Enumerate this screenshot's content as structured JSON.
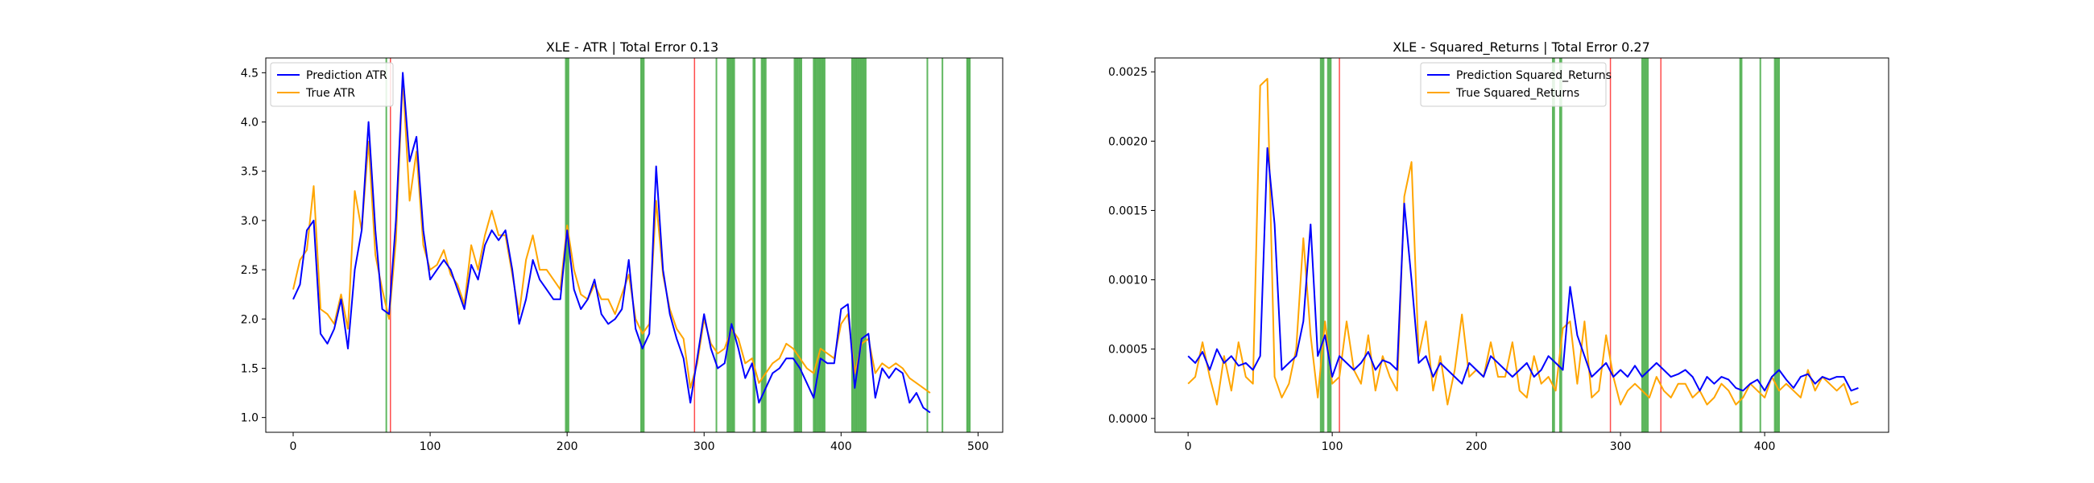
{
  "chart_data": [
    {
      "type": "line",
      "title": "XLE - ATR | Total Error 0.13",
      "xlabel": "",
      "ylabel": "",
      "xlim": [
        -20,
        518
      ],
      "ylim": [
        0.85,
        4.65
      ],
      "xticks": [
        0,
        100,
        200,
        300,
        400,
        500
      ],
      "yticks": [
        1.0,
        1.5,
        2.0,
        2.5,
        3.0,
        3.5,
        4.0,
        4.5
      ],
      "ytick_format": 1,
      "legend_position": "upper-left",
      "grid": false,
      "series": [
        {
          "name": "Prediction ATR",
          "color": "#0000ff",
          "x": [
            0,
            5,
            10,
            15,
            20,
            25,
            30,
            35,
            40,
            45,
            50,
            55,
            60,
            65,
            70,
            75,
            80,
            85,
            90,
            95,
            100,
            105,
            110,
            115,
            120,
            125,
            130,
            135,
            140,
            145,
            150,
            155,
            160,
            165,
            170,
            175,
            180,
            185,
            190,
            195,
            200,
            205,
            210,
            215,
            220,
            225,
            230,
            235,
            240,
            245,
            250,
            255,
            260,
            265,
            270,
            275,
            280,
            285,
            290,
            295,
            300,
            305,
            310,
            315,
            320,
            325,
            330,
            335,
            340,
            345,
            350,
            355,
            360,
            365,
            370,
            375,
            380,
            385,
            390,
            395,
            400,
            405,
            410,
            415,
            420,
            425,
            430,
            435,
            440,
            445,
            450,
            455,
            460,
            465
          ],
          "values": [
            2.2,
            2.35,
            2.9,
            3.0,
            1.85,
            1.75,
            1.9,
            2.2,
            1.7,
            2.5,
            2.9,
            4.0,
            2.9,
            2.1,
            2.05,
            3.0,
            4.5,
            3.6,
            3.85,
            2.9,
            2.4,
            2.5,
            2.6,
            2.5,
            2.3,
            2.1,
            2.55,
            2.4,
            2.75,
            2.9,
            2.8,
            2.9,
            2.5,
            1.95,
            2.2,
            2.6,
            2.4,
            2.3,
            2.2,
            2.2,
            2.9,
            2.3,
            2.1,
            2.2,
            2.4,
            2.05,
            1.95,
            2.0,
            2.1,
            2.6,
            1.9,
            1.7,
            1.85,
            3.55,
            2.5,
            2.05,
            1.8,
            1.6,
            1.15,
            1.6,
            2.05,
            1.7,
            1.5,
            1.55,
            1.95,
            1.7,
            1.4,
            1.55,
            1.15,
            1.3,
            1.45,
            1.5,
            1.6,
            1.6,
            1.5,
            1.35,
            1.2,
            1.6,
            1.55,
            1.55,
            2.1,
            2.15,
            1.3,
            1.8,
            1.85,
            1.2,
            1.5,
            1.4,
            1.5,
            1.45,
            1.15,
            1.25,
            1.1,
            1.05
          ]
        },
        {
          "name": "True ATR",
          "color": "#ffa500",
          "x": [
            0,
            5,
            10,
            15,
            20,
            25,
            30,
            35,
            40,
            45,
            50,
            55,
            60,
            65,
            70,
            75,
            80,
            85,
            90,
            95,
            100,
            105,
            110,
            115,
            120,
            125,
            130,
            135,
            140,
            145,
            150,
            155,
            160,
            165,
            170,
            175,
            180,
            185,
            190,
            195,
            200,
            205,
            210,
            215,
            220,
            225,
            230,
            235,
            240,
            245,
            250,
            255,
            260,
            265,
            270,
            275,
            280,
            285,
            290,
            295,
            300,
            305,
            310,
            315,
            320,
            325,
            330,
            335,
            340,
            345,
            350,
            355,
            360,
            365,
            370,
            375,
            380,
            385,
            390,
            395,
            400,
            405,
            410,
            415,
            420,
            425,
            430,
            435,
            440,
            445,
            450,
            455,
            460,
            465
          ],
          "values": [
            2.3,
            2.6,
            2.7,
            3.35,
            2.1,
            2.05,
            1.95,
            2.25,
            1.9,
            3.3,
            2.9,
            3.8,
            2.65,
            2.3,
            2.0,
            2.8,
            4.45,
            3.2,
            3.7,
            2.75,
            2.5,
            2.55,
            2.7,
            2.45,
            2.35,
            2.15,
            2.75,
            2.5,
            2.85,
            3.1,
            2.85,
            2.85,
            2.45,
            2.05,
            2.6,
            2.85,
            2.5,
            2.5,
            2.4,
            2.3,
            2.95,
            2.5,
            2.25,
            2.2,
            2.35,
            2.2,
            2.2,
            2.05,
            2.25,
            2.45,
            2.0,
            1.85,
            1.95,
            3.2,
            2.45,
            2.1,
            1.9,
            1.8,
            1.3,
            1.55,
            2.0,
            1.75,
            1.65,
            1.7,
            1.9,
            1.8,
            1.55,
            1.6,
            1.35,
            1.45,
            1.55,
            1.6,
            1.75,
            1.7,
            1.6,
            1.5,
            1.45,
            1.7,
            1.65,
            1.6,
            1.95,
            2.05,
            1.45,
            1.75,
            1.8,
            1.45,
            1.55,
            1.5,
            1.55,
            1.5,
            1.4,
            1.35,
            1.3,
            1.25
          ]
        }
      ],
      "vlines_green": [
        68,
        199,
        200,
        201,
        254,
        255,
        256,
        309,
        317,
        318,
        319,
        320,
        321,
        322,
        336,
        337,
        342,
        343,
        344,
        345,
        366,
        367,
        368,
        369,
        370,
        371,
        380,
        381,
        382,
        383,
        384,
        385,
        386,
        387,
        388,
        408,
        409,
        410,
        411,
        412,
        413,
        414,
        415,
        416,
        417,
        418,
        463,
        474,
        492,
        493,
        494
      ],
      "vlines_red": [
        71,
        293
      ]
    },
    {
      "type": "line",
      "title": "XLE - Squared_Returns | Total Error 0.27",
      "xlabel": "",
      "ylabel": "",
      "xlim": [
        -23,
        486
      ],
      "ylim": [
        -0.0001,
        0.0026
      ],
      "xticks": [
        0,
        100,
        200,
        300,
        400
      ],
      "yticks": [
        0.0,
        0.0005,
        0.001,
        0.0015,
        0.002,
        0.0025
      ],
      "ytick_format": 4,
      "legend_position": "upper-center",
      "grid": false,
      "series": [
        {
          "name": "Prediction Squared_Returns",
          "color": "#0000ff",
          "x": [
            0,
            5,
            10,
            15,
            20,
            25,
            30,
            35,
            40,
            45,
            50,
            55,
            60,
            65,
            70,
            75,
            80,
            85,
            90,
            95,
            100,
            105,
            110,
            115,
            120,
            125,
            130,
            135,
            140,
            145,
            150,
            155,
            160,
            165,
            170,
            175,
            180,
            185,
            190,
            195,
            200,
            205,
            210,
            215,
            220,
            225,
            230,
            235,
            240,
            245,
            250,
            255,
            260,
            265,
            270,
            275,
            280,
            285,
            290,
            295,
            300,
            305,
            310,
            315,
            320,
            325,
            330,
            335,
            340,
            345,
            350,
            355,
            360,
            365,
            370,
            375,
            380,
            385,
            390,
            395,
            400,
            405,
            410,
            415,
            420,
            425,
            430,
            435,
            440,
            445,
            450,
            455,
            460,
            465
          ],
          "values": [
            0.00045,
            0.0004,
            0.00048,
            0.00035,
            0.0005,
            0.0004,
            0.00045,
            0.00038,
            0.0004,
            0.00035,
            0.00045,
            0.00195,
            0.0014,
            0.00035,
            0.0004,
            0.00045,
            0.0007,
            0.0014,
            0.00045,
            0.0006,
            0.0003,
            0.00045,
            0.0004,
            0.00035,
            0.0004,
            0.00048,
            0.00035,
            0.00042,
            0.0004,
            0.00035,
            0.00155,
            0.001,
            0.0004,
            0.00045,
            0.0003,
            0.0004,
            0.00035,
            0.0003,
            0.00025,
            0.0004,
            0.00035,
            0.0003,
            0.00045,
            0.0004,
            0.00035,
            0.0003,
            0.00035,
            0.0004,
            0.0003,
            0.00035,
            0.00045,
            0.0004,
            0.00035,
            0.00095,
            0.0006,
            0.00045,
            0.0003,
            0.00035,
            0.0004,
            0.0003,
            0.00035,
            0.0003,
            0.00038,
            0.0003,
            0.00035,
            0.0004,
            0.00035,
            0.0003,
            0.00032,
            0.00035,
            0.0003,
            0.0002,
            0.0003,
            0.00025,
            0.0003,
            0.00028,
            0.00022,
            0.0002,
            0.00025,
            0.00028,
            0.0002,
            0.0003,
            0.00035,
            0.00028,
            0.00022,
            0.0003,
            0.00032,
            0.00025,
            0.0003,
            0.00028,
            0.0003,
            0.0003,
            0.0002,
            0.00022
          ]
        },
        {
          "name": "True Squared_Returns",
          "color": "#ffa500",
          "x": [
            0,
            5,
            10,
            15,
            20,
            25,
            30,
            35,
            40,
            45,
            50,
            55,
            60,
            65,
            70,
            75,
            80,
            85,
            90,
            95,
            100,
            105,
            110,
            115,
            120,
            125,
            130,
            135,
            140,
            145,
            150,
            155,
            160,
            165,
            170,
            175,
            180,
            185,
            190,
            195,
            200,
            205,
            210,
            215,
            220,
            225,
            230,
            235,
            240,
            245,
            250,
            255,
            260,
            265,
            270,
            275,
            280,
            285,
            290,
            295,
            300,
            305,
            310,
            315,
            320,
            325,
            330,
            335,
            340,
            345,
            350,
            355,
            360,
            365,
            370,
            375,
            380,
            385,
            390,
            395,
            400,
            405,
            410,
            415,
            420,
            425,
            430,
            435,
            440,
            445,
            450,
            455,
            460,
            465
          ],
          "values": [
            0.00025,
            0.0003,
            0.00055,
            0.0003,
            0.0001,
            0.00045,
            0.0002,
            0.00055,
            0.0003,
            0.00025,
            0.0024,
            0.00245,
            0.0003,
            0.00015,
            0.00025,
            0.0005,
            0.0013,
            0.0006,
            0.00015,
            0.0007,
            0.00025,
            0.0003,
            0.0007,
            0.00035,
            0.00025,
            0.0006,
            0.0002,
            0.00045,
            0.0003,
            0.0002,
            0.0016,
            0.00185,
            0.00045,
            0.0007,
            0.0002,
            0.00045,
            0.0001,
            0.00035,
            0.00075,
            0.0003,
            0.00035,
            0.0003,
            0.00055,
            0.0003,
            0.0003,
            0.00055,
            0.0002,
            0.00015,
            0.00045,
            0.00025,
            0.0003,
            0.0002,
            0.00065,
            0.0007,
            0.00025,
            0.0007,
            0.00015,
            0.0002,
            0.0006,
            0.0003,
            0.0001,
            0.0002,
            0.00025,
            0.0002,
            0.00015,
            0.0003,
            0.0002,
            0.00015,
            0.00025,
            0.00025,
            0.00015,
            0.0002,
            0.0001,
            0.00015,
            0.00025,
            0.0002,
            0.0001,
            0.00015,
            0.00025,
            0.0002,
            0.00015,
            0.0003,
            0.0002,
            0.00025,
            0.0002,
            0.00015,
            0.00035,
            0.0002,
            0.0003,
            0.00025,
            0.0002,
            0.00025,
            0.0001,
            0.00012
          ]
        }
      ],
      "vlines_green": [
        92,
        93,
        94,
        97,
        98,
        99,
        253,
        254,
        258,
        259,
        315,
        316,
        317,
        318,
        319,
        383,
        384,
        397,
        407,
        408,
        409,
        410
      ],
      "vlines_red": [
        105,
        293,
        328
      ]
    }
  ]
}
